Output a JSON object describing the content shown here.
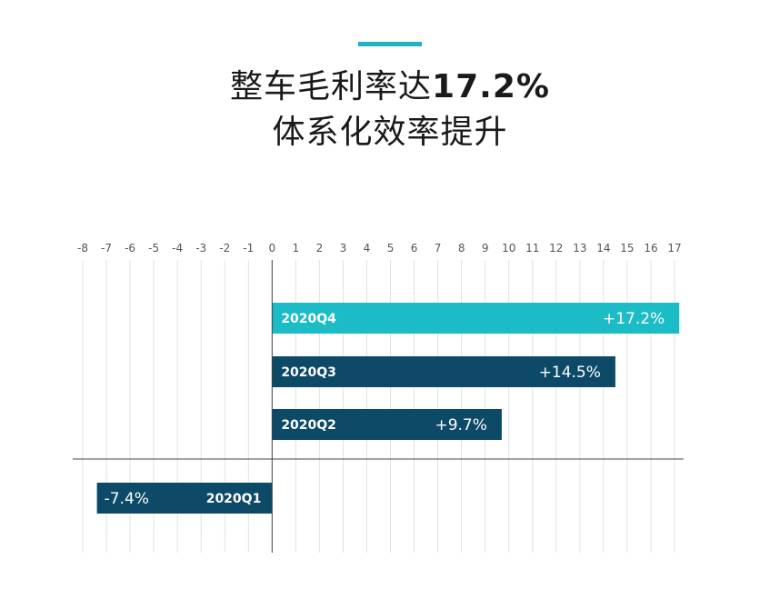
{
  "title": {
    "line1_prefix": "整车毛利率达",
    "line1_highlight": "17.2%",
    "line2": "体系化效率提升"
  },
  "colors": {
    "accent": "#1fb4c4",
    "highlight_bar": "#1bbcc5",
    "bar": "#0c4a68",
    "grid": "#dde3e8",
    "axis": "#444444"
  },
  "chart_data": {
    "type": "bar",
    "orientation": "horizontal",
    "xlim": [
      -8,
      17
    ],
    "ticks": [
      -8,
      -7,
      -6,
      -5,
      -4,
      -3,
      -2,
      -1,
      0,
      1,
      2,
      3,
      4,
      5,
      6,
      7,
      8,
      9,
      10,
      11,
      12,
      13,
      14,
      15,
      16,
      17
    ],
    "tick_labels": [
      "-8",
      "-7",
      "-6",
      "-5",
      "-4",
      "-3",
      "-2",
      "-1",
      "0",
      "1",
      "2",
      "3",
      "4",
      "5",
      "6",
      "7",
      "8",
      "9",
      "10",
      "11",
      "12",
      "13",
      "14",
      "15",
      "16",
      "17"
    ],
    "bars": [
      {
        "category": "2020Q4",
        "value": 17.2,
        "value_label": "+17.2%",
        "highlight": true
      },
      {
        "category": "2020Q3",
        "value": 14.5,
        "value_label": "+14.5%",
        "highlight": false
      },
      {
        "category": "2020Q2",
        "value": 9.7,
        "value_label": "+9.7%",
        "highlight": false
      },
      {
        "category": "2020Q1",
        "value": -7.4,
        "value_label": "-7.4%",
        "highlight": false
      }
    ],
    "grid": true,
    "legend": "none"
  }
}
